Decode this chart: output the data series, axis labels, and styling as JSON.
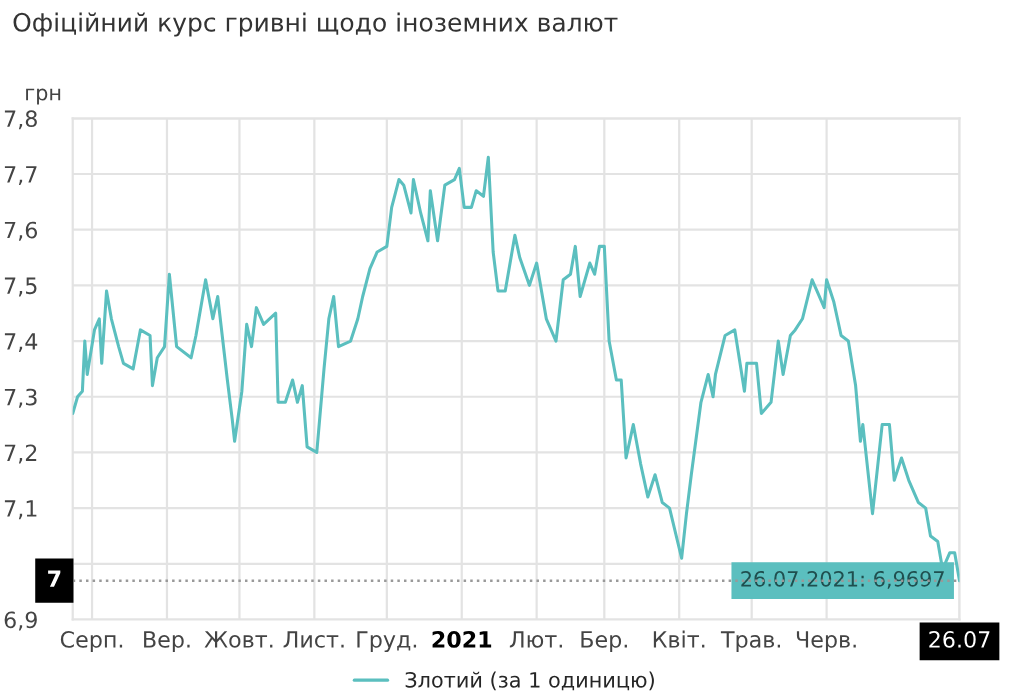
{
  "chart_data": {
    "type": "line",
    "title": "Офіційний курс гривні щодо іноземних валют",
    "ylabel": "грн",
    "x": [
      "2020-07-24",
      "2020-07-26",
      "2020-07-28",
      "2020-07-29",
      "2020-07-30",
      "2020-08-02",
      "2020-08-04",
      "2020-08-05",
      "2020-08-07",
      "2020-08-09",
      "2020-08-12",
      "2020-08-14",
      "2020-08-18",
      "2020-08-21",
      "2020-08-25",
      "2020-08-26",
      "2020-08-28",
      "2020-08-31",
      "2020-09-02",
      "2020-09-05",
      "2020-09-11",
      "2020-09-13",
      "2020-09-17",
      "2020-09-20",
      "2020-09-22",
      "2020-09-26",
      "2020-09-28",
      "2020-09-29",
      "2020-10-02",
      "2020-10-04",
      "2020-10-06",
      "2020-10-08",
      "2020-10-11",
      "2020-10-16",
      "2020-10-17",
      "2020-10-20",
      "2020-10-23",
      "2020-10-25",
      "2020-10-27",
      "2020-10-29",
      "2020-11-02",
      "2020-11-05",
      "2020-11-07",
      "2020-11-09",
      "2020-11-11",
      "2020-11-16",
      "2020-11-19",
      "2020-11-21",
      "2020-11-24",
      "2020-11-27",
      "2020-12-01",
      "2020-12-03",
      "2020-12-06",
      "2020-12-08",
      "2020-12-11",
      "2020-12-12",
      "2020-12-15",
      "2020-12-18",
      "2020-12-19",
      "2020-12-22",
      "2020-12-25",
      "2020-12-29",
      "2020-12-31",
      "2021-01-02",
      "2021-01-05",
      "2021-01-07",
      "2021-01-10",
      "2021-01-12",
      "2021-01-14",
      "2021-01-16",
      "2021-01-19",
      "2021-01-23",
      "2021-01-25",
      "2021-01-29",
      "2021-02-01",
      "2021-02-05",
      "2021-02-09",
      "2021-02-12",
      "2021-02-15",
      "2021-02-17",
      "2021-02-19",
      "2021-02-23",
      "2021-02-25",
      "2021-02-27",
      "2021-03-01",
      "2021-03-03",
      "2021-03-06",
      "2021-03-08",
      "2021-03-10",
      "2021-03-13",
      "2021-03-16",
      "2021-03-19",
      "2021-03-22",
      "2021-03-25",
      "2021-03-28",
      "2021-04-02",
      "2021-04-04",
      "2021-04-06",
      "2021-04-10",
      "2021-04-13",
      "2021-04-15",
      "2021-04-16",
      "2021-04-20",
      "2021-04-24",
      "2021-04-28",
      "2021-04-29",
      "2021-05-03",
      "2021-05-05",
      "2021-05-09",
      "2021-05-12",
      "2021-05-14",
      "2021-05-17",
      "2021-05-19",
      "2021-05-22",
      "2021-05-26",
      "2021-05-28",
      "2021-05-31",
      "2021-06-01",
      "2021-06-04",
      "2021-06-07",
      "2021-06-10",
      "2021-06-13",
      "2021-06-15",
      "2021-06-16",
      "2021-06-20",
      "2021-06-24",
      "2021-06-27",
      "2021-06-29",
      "2021-07-02",
      "2021-07-05",
      "2021-07-09",
      "2021-07-12",
      "2021-07-14",
      "2021-07-17",
      "2021-07-19",
      "2021-07-22",
      "2021-07-24",
      "2021-07-26"
    ],
    "series": [
      {
        "name": "Злотий (за 1 одиницю)",
        "color": "#5bbfbf",
        "values": [
          7.27,
          7.3,
          7.31,
          7.4,
          7.34,
          7.42,
          7.44,
          7.36,
          7.49,
          7.44,
          7.39,
          7.36,
          7.35,
          7.42,
          7.41,
          7.32,
          7.37,
          7.39,
          7.52,
          7.39,
          7.37,
          7.41,
          7.51,
          7.44,
          7.48,
          7.33,
          7.26,
          7.22,
          7.31,
          7.43,
          7.39,
          7.46,
          7.43,
          7.45,
          7.29,
          7.29,
          7.33,
          7.29,
          7.32,
          7.21,
          7.2,
          7.35,
          7.44,
          7.48,
          7.39,
          7.4,
          7.44,
          7.48,
          7.53,
          7.56,
          7.57,
          7.64,
          7.69,
          7.68,
          7.63,
          7.69,
          7.63,
          7.58,
          7.67,
          7.58,
          7.68,
          7.69,
          7.71,
          7.64,
          7.64,
          7.67,
          7.66,
          7.73,
          7.56,
          7.49,
          7.49,
          7.59,
          7.55,
          7.5,
          7.54,
          7.44,
          7.4,
          7.51,
          7.52,
          7.57,
          7.48,
          7.54,
          7.52,
          7.57,
          7.57,
          7.4,
          7.33,
          7.33,
          7.19,
          7.25,
          7.18,
          7.12,
          7.16,
          7.11,
          7.1,
          7.01,
          7.09,
          7.16,
          7.29,
          7.34,
          7.3,
          7.34,
          7.41,
          7.42,
          7.31,
          7.36,
          7.36,
          7.27,
          7.29,
          7.4,
          7.34,
          7.41,
          7.42,
          7.44,
          7.51,
          7.49,
          7.46,
          7.51,
          7.47,
          7.41,
          7.4,
          7.32,
          7.22,
          7.25,
          7.09,
          7.25,
          7.25,
          7.15,
          7.19,
          7.15,
          7.11,
          7.1,
          7.05,
          7.04,
          6.99,
          7.02,
          7.02,
          6.9697
        ]
      }
    ],
    "xlim": [
      "2020-07-24",
      "2021-07-26"
    ],
    "xticks": [
      {
        "value": "2020-08-01",
        "label": "Серп."
      },
      {
        "value": "2020-09-01",
        "label": "Вер."
      },
      {
        "value": "2020-10-01",
        "label": "Жовт."
      },
      {
        "value": "2020-11-01",
        "label": "Лист."
      },
      {
        "value": "2020-12-01",
        "label": "Груд."
      },
      {
        "value": "2021-01-01",
        "label": "2021"
      },
      {
        "value": "2021-02-01",
        "label": "Лют."
      },
      {
        "value": "2021-03-01",
        "label": "Бер."
      },
      {
        "value": "2021-04-01",
        "label": "Квіт."
      },
      {
        "value": "2021-05-01",
        "label": "Трав."
      },
      {
        "value": "2021-06-01",
        "label": "Черв."
      },
      {
        "value": "2021-07-26",
        "label": "26.07"
      }
    ],
    "ylim": [
      6.9,
      7.8
    ],
    "yticks": [
      {
        "value": 6.9,
        "label": "6,9"
      },
      {
        "value": 7.0,
        "label": null
      },
      {
        "value": 7.1,
        "label": "7,1"
      },
      {
        "value": 7.2,
        "label": "7,2"
      },
      {
        "value": 7.3,
        "label": "7,3"
      },
      {
        "value": 7.4,
        "label": "7,4"
      },
      {
        "value": 7.5,
        "label": "7,5"
      },
      {
        "value": 7.6,
        "label": "7,6"
      },
      {
        "value": 7.7,
        "label": "7,7"
      },
      {
        "value": 7.8,
        "label": "7,8"
      }
    ],
    "ref_lines": [
      {
        "axis": "y",
        "value": 6.9697,
        "label": "7",
        "color": "#999999",
        "line_style": "dotted"
      }
    ],
    "annotations": [
      {
        "text": "26.07.2021: 6,9697",
        "x": "2021-07-26",
        "y": 6.9697
      }
    ],
    "grid": true,
    "legend": "bottom",
    "marker": "none",
    "line_style": "solid"
  }
}
